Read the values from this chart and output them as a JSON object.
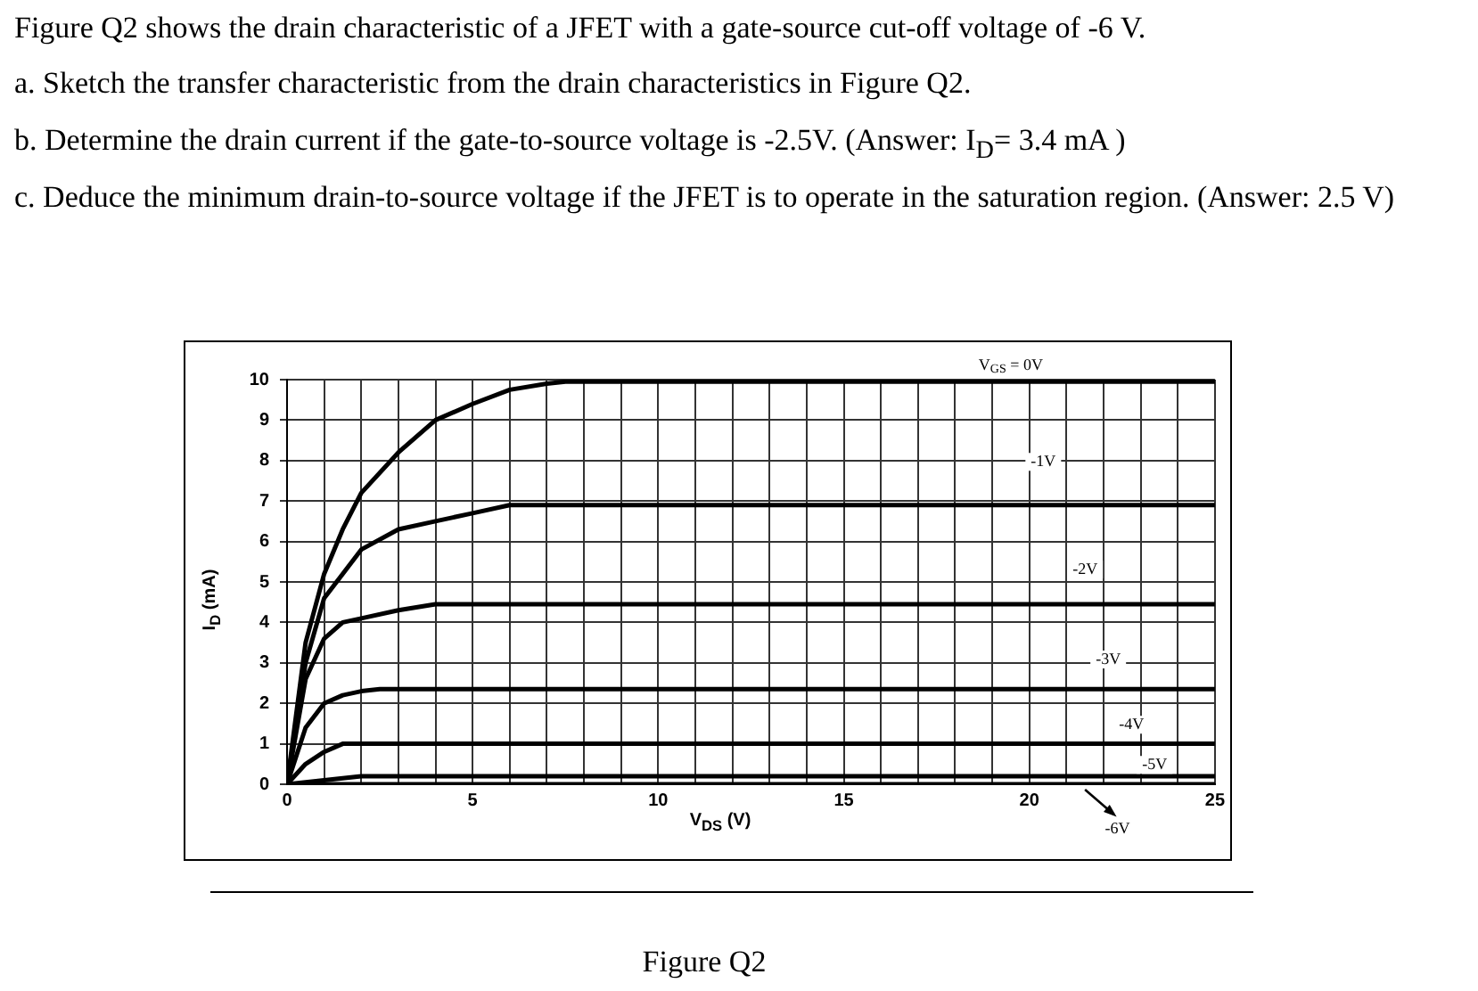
{
  "chart_data": {
    "type": "line",
    "title": "Figure Q2 shows the drain characteristic of a JFET with a gate-source cut-off voltage of -6 V.",
    "annotations": [
      "a. Sketch the transfer characteristic from the drain characteristics in Figure Q2.",
      "b. Determine the drain current if the gate-to-source voltage is -2.5V.  (Answer: I$_{D}$= 3.4 mA )",
      "c. Deduce the minimum drain-to-source voltage if the JFET is to operate in the saturation region. (Answer: 2.5 V)",
      "Figure Q2"
    ],
    "xlabel": "V$_{DS}$ (V)",
    "ylabel": "I$_{D}$ (mA)",
    "xlim": [
      0,
      25
    ],
    "ylim": [
      0,
      10
    ],
    "xticks": [
      0,
      {
        "value": 1,
        "label": null
      },
      {
        "value": 2,
        "label": null
      },
      {
        "value": 3,
        "label": null
      },
      {
        "value": 4,
        "label": null
      },
      5,
      {
        "value": 6,
        "label": null
      },
      {
        "value": 7,
        "label": null
      },
      {
        "value": 8,
        "label": null
      },
      {
        "value": 9,
        "label": null
      },
      10,
      {
        "value": 11,
        "label": null
      },
      {
        "value": 12,
        "label": null
      },
      {
        "value": 13,
        "label": null
      },
      {
        "value": 14,
        "label": null
      },
      15,
      {
        "value": 16,
        "label": null
      },
      {
        "value": 17,
        "label": null
      },
      {
        "value": 18,
        "label": null
      },
      {
        "value": 19,
        "label": null
      },
      20,
      {
        "value": 21,
        "label": null
      },
      {
        "value": 22,
        "label": null
      },
      {
        "value": 23,
        "label": null
      },
      {
        "value": 24,
        "label": null
      },
      25
    ],
    "yticks": [
      0,
      1,
      2,
      3,
      4,
      5,
      6,
      7,
      8,
      9,
      10
    ],
    "grid": true,
    "marker": "none",
    "line_style": "solid",
    "series": [
      {
        "name": "V$_{GS}$ = 0V",
        "color": "#000000",
        "x": [
          0,
          0.5,
          1,
          1.5,
          2,
          3,
          4,
          5,
          6,
          7,
          7.5,
          25
        ],
        "values": [
          0,
          3.5,
          5.2,
          6.3,
          7.2,
          8.2,
          9,
          9.4,
          9.75,
          9.9,
          9.95,
          9.95
        ]
      },
      {
        "name": "-1V",
        "color": "#000000",
        "x": [
          0,
          0.5,
          1,
          1.5,
          2,
          3,
          4,
          5,
          6,
          25
        ],
        "values": [
          0,
          3,
          4.6,
          5.2,
          5.8,
          6.3,
          6.5,
          6.7,
          6.9,
          6.9
        ]
      },
      {
        "name": "-2V",
        "color": "#000000",
        "x": [
          0,
          0.5,
          1,
          1.5,
          2,
          3,
          4,
          25
        ],
        "values": [
          0,
          2.6,
          3.6,
          4,
          4.1,
          4.3,
          4.45,
          4.45
        ]
      },
      {
        "name": "-3V",
        "color": "#000000",
        "x": [
          0,
          0.5,
          1,
          1.5,
          2,
          2.5,
          25
        ],
        "values": [
          0,
          1.4,
          2,
          2.2,
          2.3,
          2.35,
          2.35
        ]
      },
      {
        "name": "-4V",
        "color": "#000000",
        "x": [
          0,
          0.5,
          1,
          1.5,
          25
        ],
        "values": [
          0,
          0.5,
          0.8,
          1,
          1
        ]
      },
      {
        "name": "-5V",
        "color": "#000000",
        "x": [
          0,
          1,
          2,
          25
        ],
        "values": [
          0,
          0.1,
          0.2,
          0.2
        ]
      },
      {
        "name": "-6V",
        "color": "#000000",
        "x": [
          0,
          25
        ],
        "values": [
          0,
          0
        ]
      }
    ]
  }
}
